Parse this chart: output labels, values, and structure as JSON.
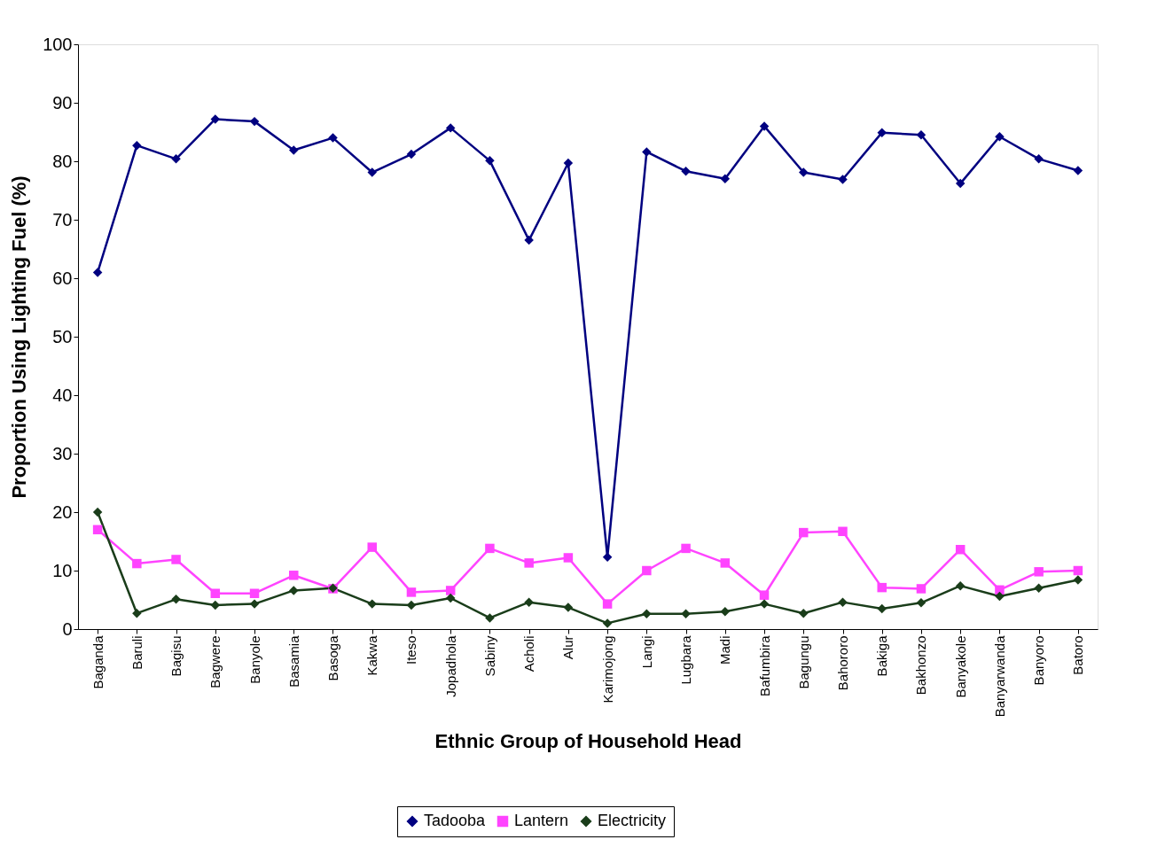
{
  "chart_data": {
    "type": "line",
    "xlabel": "Ethnic Group of Household Head",
    "ylabel": "Proportion Using Lighting Fuel (%)",
    "categories": [
      "Baganda",
      "Baruli",
      "Bagisu",
      "Bagwere",
      "Banyole",
      "Basamia",
      "Basoga",
      "Kakwa",
      "Iteso",
      "Jopadhola",
      "Sabiny",
      "Acholi",
      "Alur",
      "Karimojong",
      "Langi",
      "Lugbara",
      "Madi",
      "Bafumbira",
      "Bagungu",
      "Bahororo",
      "Bakiga",
      "Bakhonzo",
      "Banyakole",
      "Banyarwanda",
      "Banyoro",
      "Batoro"
    ],
    "series": [
      {
        "name": "Tadooba",
        "color": "#000080",
        "marker": "diamond",
        "values": [
          61,
          82.7,
          80.4,
          87.2,
          86.8,
          81.9,
          84,
          78.1,
          81.2,
          85.7,
          80.1,
          66.5,
          79.7,
          12.3,
          81.6,
          78.3,
          77,
          86,
          78.1,
          76.9,
          84.9,
          84.5,
          76.2,
          84.2,
          80.4,
          78.4
        ]
      },
      {
        "name": "Lantern",
        "color": "#ff44ff",
        "marker": "square",
        "values": [
          17,
          11.2,
          11.9,
          6.1,
          6.1,
          9.2,
          6.9,
          14,
          6.3,
          6.6,
          13.8,
          11.3,
          12.2,
          4.3,
          10,
          13.8,
          11.3,
          5.8,
          16.5,
          16.7,
          7.1,
          6.9,
          13.6,
          6.7,
          9.8,
          10
        ]
      },
      {
        "name": "Electricity",
        "color": "#1a3d1a",
        "marker": "diamond",
        "values": [
          20,
          2.7,
          5.1,
          4.1,
          4.3,
          6.6,
          7,
          4.3,
          4.1,
          5.3,
          1.9,
          4.6,
          3.7,
          1,
          2.6,
          2.6,
          3,
          4.3,
          2.7,
          4.6,
          3.5,
          4.5,
          7.4,
          5.6,
          7,
          8.4
        ]
      }
    ],
    "ylim": [
      0,
      100
    ],
    "yticks": [
      0,
      10,
      20,
      30,
      40,
      50,
      60,
      70,
      80,
      90,
      100
    ],
    "grid": false,
    "legend": "bottom",
    "line_style": "solid"
  }
}
